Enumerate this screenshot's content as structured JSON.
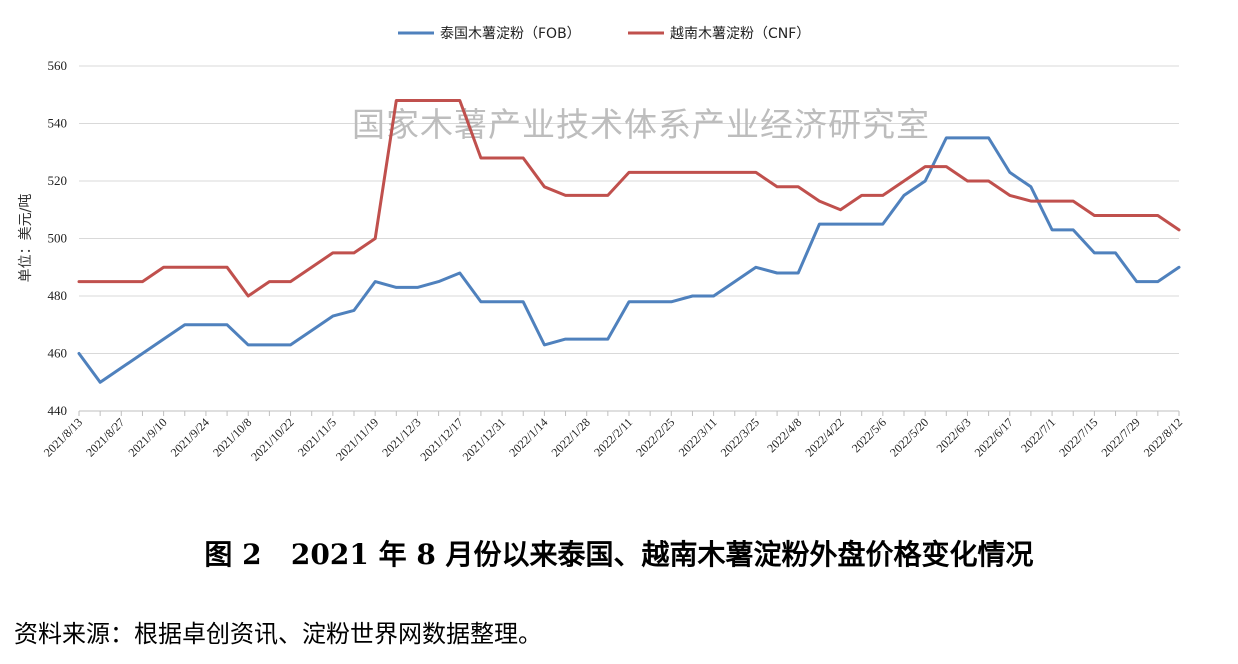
{
  "chart_data": {
    "type": "line",
    "ylabel": "单位：美元/吨",
    "ylim": [
      440,
      560
    ],
    "yticks": [
      440,
      460,
      480,
      500,
      520,
      540,
      560
    ],
    "legend_position": "top-center",
    "grid": true,
    "x": [
      "2021/8/13",
      "2021/8/20",
      "2021/8/27",
      "2021/9/3",
      "2021/9/10",
      "2021/9/17",
      "2021/9/24",
      "2021/10/1",
      "2021/10/8",
      "2021/10/15",
      "2021/10/22",
      "2021/10/29",
      "2021/11/5",
      "2021/11/12",
      "2021/11/19",
      "2021/11/26",
      "2021/12/3",
      "2021/12/10",
      "2021/12/17",
      "2021/12/24",
      "2021/12/31",
      "2022/1/7",
      "2022/1/14",
      "2022/1/21",
      "2022/1/28",
      "2022/2/4",
      "2022/2/11",
      "2022/2/18",
      "2022/2/25",
      "2022/3/4",
      "2022/3/11",
      "2022/3/18",
      "2022/3/25",
      "2022/4/1",
      "2022/4/8",
      "2022/4/15",
      "2022/4/22",
      "2022/4/29",
      "2022/5/6",
      "2022/5/13",
      "2022/5/20",
      "2022/5/27",
      "2022/6/3",
      "2022/6/10",
      "2022/6/17",
      "2022/6/24",
      "2022/7/1",
      "2022/7/8",
      "2022/7/15",
      "2022/7/22",
      "2022/7/29",
      "2022/8/5",
      "2022/8/12"
    ],
    "x_tick_labels": [
      "2021/8/13",
      "2021/8/27",
      "2021/9/10",
      "2021/9/24",
      "2021/10/8",
      "2021/10/22",
      "2021/11/5",
      "2021/11/19",
      "2021/12/3",
      "2021/12/17",
      "2021/12/31",
      "2022/1/14",
      "2022/1/28",
      "2022/2/11",
      "2022/2/25",
      "2022/3/11",
      "2022/3/25",
      "2022/4/8",
      "2022/4/22",
      "2022/5/6",
      "2022/5/20",
      "2022/6/3",
      "2022/6/17",
      "2022/7/1",
      "2022/7/15",
      "2022/7/29",
      "2022/8/12"
    ],
    "series": [
      {
        "name": "泰国木薯淀粉（FOB）",
        "color": "#4f81bd",
        "values": [
          460,
          450,
          455,
          460,
          465,
          470,
          470,
          470,
          463,
          463,
          463,
          468,
          473,
          475,
          485,
          483,
          483,
          485,
          488,
          478,
          478,
          478,
          463,
          465,
          465,
          465,
          478,
          478,
          478,
          480,
          480,
          485,
          490,
          488,
          488,
          505,
          505,
          505,
          505,
          515,
          520,
          535,
          535,
          535,
          523,
          518,
          503,
          503,
          495,
          495,
          485,
          485,
          490
        ]
      },
      {
        "name": "越南木薯淀粉（CNF）",
        "color": "#c0504d",
        "values": [
          485,
          485,
          485,
          485,
          490,
          490,
          490,
          490,
          480,
          485,
          485,
          490,
          495,
          495,
          500,
          548,
          548,
          548,
          548,
          528,
          528,
          528,
          518,
          515,
          515,
          515,
          523,
          523,
          523,
          523,
          523,
          523,
          523,
          518,
          518,
          513,
          510,
          515,
          515,
          520,
          525,
          525,
          520,
          520,
          515,
          513,
          513,
          513,
          508,
          508,
          508,
          508,
          503
        ]
      }
    ]
  },
  "watermark": "国家木薯产业技术体系产业经济研究室",
  "figure_caption": "图 2   2021 年 8 月份以来泰国、越南木薯淀粉外盘价格变化情况",
  "source_note": "资料来源：根据卓创资讯、淀粉世界网数据整理。"
}
